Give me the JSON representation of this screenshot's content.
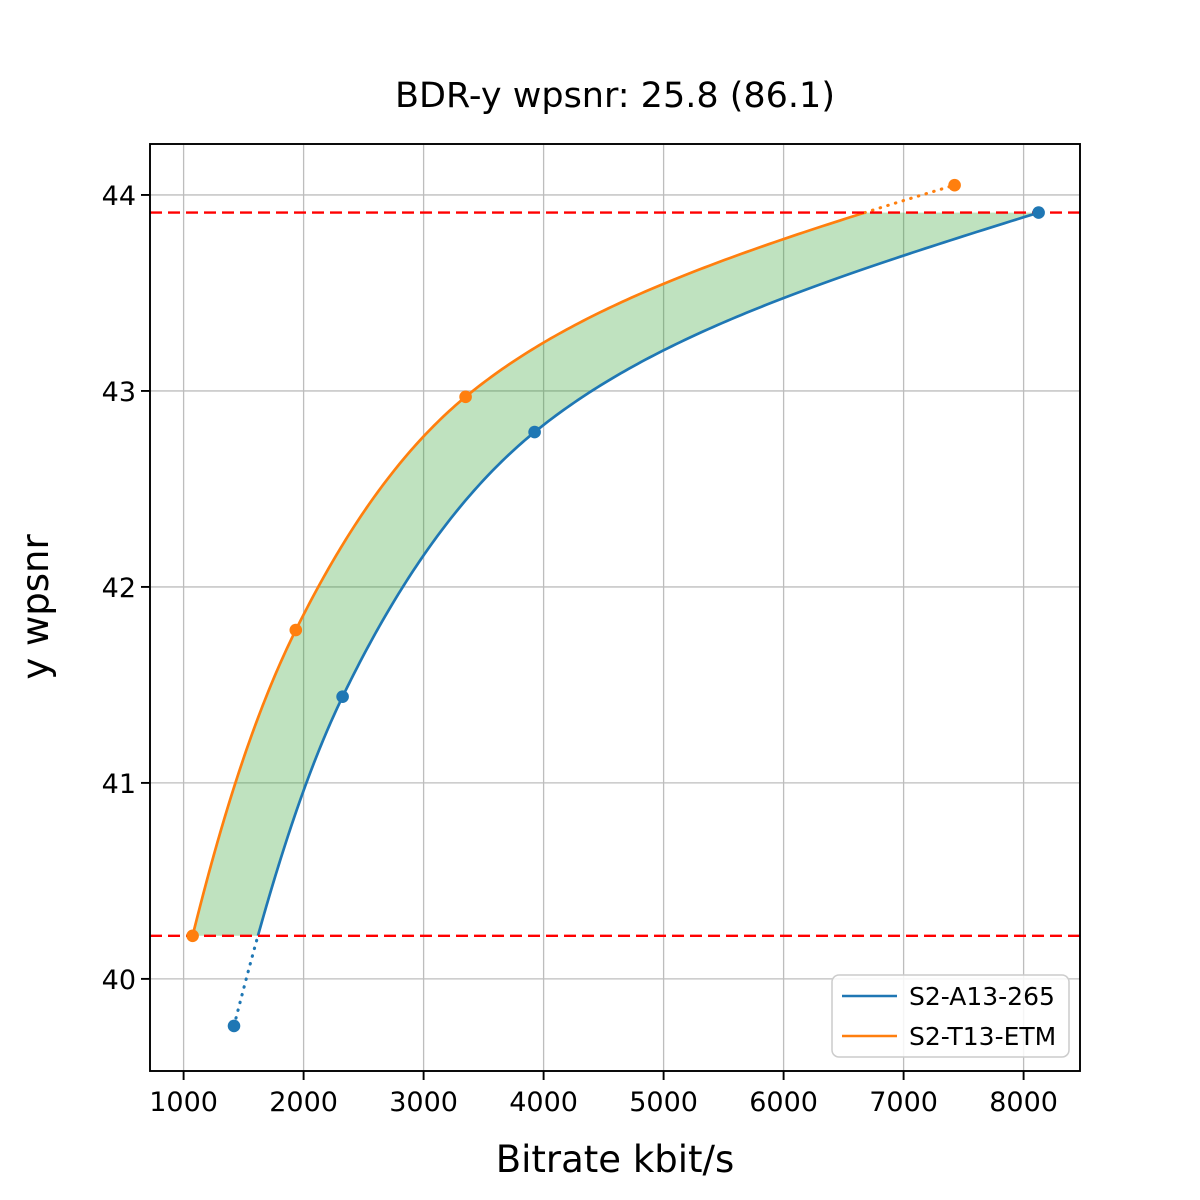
{
  "chart_data": {
    "type": "line",
    "title": "BDR-y wpsnr: 25.8 (86.1)",
    "xlabel": "Bitrate kbit/s",
    "ylabel": "y wpsnr",
    "xlim": [
      720,
      8470
    ],
    "ylim": [
      39.53,
      44.26
    ],
    "xticks": [
      1000,
      2000,
      3000,
      4000,
      5000,
      6000,
      7000,
      8000
    ],
    "xtick_labels": [
      "1000",
      "2000",
      "3000",
      "4000",
      "5000",
      "6000",
      "7000",
      "8000"
    ],
    "yticks": [
      40,
      41,
      42,
      43,
      44
    ],
    "ytick_labels": [
      "40",
      "41",
      "42",
      "43",
      "44"
    ],
    "grid": true,
    "grid_color": "#bdbdbd",
    "legend_position": "lower right",
    "series": [
      {
        "name": "S2-A13-265",
        "color": "#1f77b4",
        "x": [
          1420,
          2325,
          3925,
          8125
        ],
        "y": [
          39.76,
          41.44,
          42.79,
          43.91
        ],
        "marker": "circle",
        "dotted_outside_overlap": true
      },
      {
        "name": "S2-T13-ETM",
        "color": "#ff7f0e",
        "x": [
          1075,
          1935,
          3350,
          7425
        ],
        "y": [
          40.22,
          41.78,
          42.97,
          44.05
        ],
        "marker": "circle",
        "dotted_outside_overlap": true
      }
    ],
    "overlap_bounds": {
      "low": 40.22,
      "high": 43.91,
      "color": "#ff0000",
      "style": "dashed"
    },
    "band": {
      "between": [
        "S2-T13-ETM",
        "S2-A13-265"
      ],
      "fill_color": "rgba(44,160,44,0.3)"
    }
  }
}
